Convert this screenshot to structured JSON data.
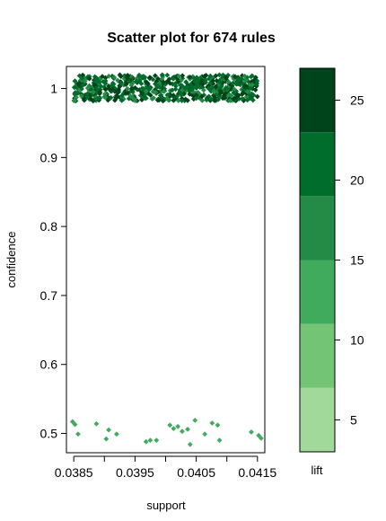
{
  "chart_data": {
    "type": "scatter",
    "title": "Scatter plot for 674 rules",
    "xlabel": "support",
    "ylabel": "confidence",
    "xlim": [
      0.03838,
      0.04162
    ],
    "ylim": [
      0.472,
      1.032
    ],
    "x_ticks": [
      {
        "value": 0.0385,
        "label": "0.0385"
      },
      {
        "value": 0.0395,
        "label": "0.0395"
      },
      {
        "value": 0.0405,
        "label": "0.0405"
      },
      {
        "value": 0.0415,
        "label": "0.0415"
      }
    ],
    "y_ticks": [
      {
        "value": 0.5,
        "label": "0.5"
      },
      {
        "value": 0.6,
        "label": "0.6"
      },
      {
        "value": 0.7,
        "label": "0.7"
      },
      {
        "value": 0.8,
        "label": "0.8"
      },
      {
        "value": 0.9,
        "label": "0.9"
      },
      {
        "value": 1.0,
        "label": "1"
      }
    ],
    "color_scale": {
      "label": "lift",
      "range": [
        3,
        27
      ],
      "bands": [
        {
          "from": 3,
          "to": 7,
          "color": "#a1d99b"
        },
        {
          "from": 7,
          "to": 11,
          "color": "#74c476"
        },
        {
          "from": 11,
          "to": 15,
          "color": "#41ab5d"
        },
        {
          "from": 15,
          "to": 19,
          "color": "#238b45"
        },
        {
          "from": 19,
          "to": 23,
          "color": "#006d2c"
        },
        {
          "from": 23,
          "to": 27,
          "color": "#00441b"
        }
      ],
      "ticks": [
        {
          "value": 5,
          "label": "5"
        },
        {
          "value": 10,
          "label": "10"
        },
        {
          "value": 15,
          "label": "15"
        },
        {
          "value": 20,
          "label": "20"
        },
        {
          "value": 25,
          "label": "25"
        }
      ]
    },
    "high_confidence_cluster": {
      "count": 650,
      "support_range": [
        0.0385,
        0.0415
      ],
      "confidence_range": [
        0.982,
        1.02
      ],
      "lift_range": [
        17,
        27
      ]
    },
    "points": [
      {
        "x": 0.03848,
        "y": 0.517,
        "lift": 12
      },
      {
        "x": 0.03852,
        "y": 0.513,
        "lift": 12
      },
      {
        "x": 0.03857,
        "y": 0.499,
        "lift": 12
      },
      {
        "x": 0.03887,
        "y": 0.514,
        "lift": 12
      },
      {
        "x": 0.03903,
        "y": 0.492,
        "lift": 12
      },
      {
        "x": 0.03907,
        "y": 0.505,
        "lift": 12
      },
      {
        "x": 0.0392,
        "y": 0.499,
        "lift": 12
      },
      {
        "x": 0.03968,
        "y": 0.488,
        "lift": 12
      },
      {
        "x": 0.03975,
        "y": 0.49,
        "lift": 12
      },
      {
        "x": 0.03985,
        "y": 0.49,
        "lift": 12
      },
      {
        "x": 0.04007,
        "y": 0.512,
        "lift": 12
      },
      {
        "x": 0.04013,
        "y": 0.507,
        "lift": 12
      },
      {
        "x": 0.0402,
        "y": 0.51,
        "lift": 12
      },
      {
        "x": 0.04027,
        "y": 0.503,
        "lift": 12
      },
      {
        "x": 0.04036,
        "y": 0.506,
        "lift": 12
      },
      {
        "x": 0.0404,
        "y": 0.484,
        "lift": 12
      },
      {
        "x": 0.04048,
        "y": 0.519,
        "lift": 12
      },
      {
        "x": 0.04064,
        "y": 0.499,
        "lift": 12
      },
      {
        "x": 0.04076,
        "y": 0.515,
        "lift": 12
      },
      {
        "x": 0.04085,
        "y": 0.512,
        "lift": 12
      },
      {
        "x": 0.04088,
        "y": 0.49,
        "lift": 12
      },
      {
        "x": 0.0414,
        "y": 0.502,
        "lift": 12
      },
      {
        "x": 0.04152,
        "y": 0.497,
        "lift": 12
      },
      {
        "x": 0.04156,
        "y": 0.493,
        "lift": 12
      }
    ]
  }
}
